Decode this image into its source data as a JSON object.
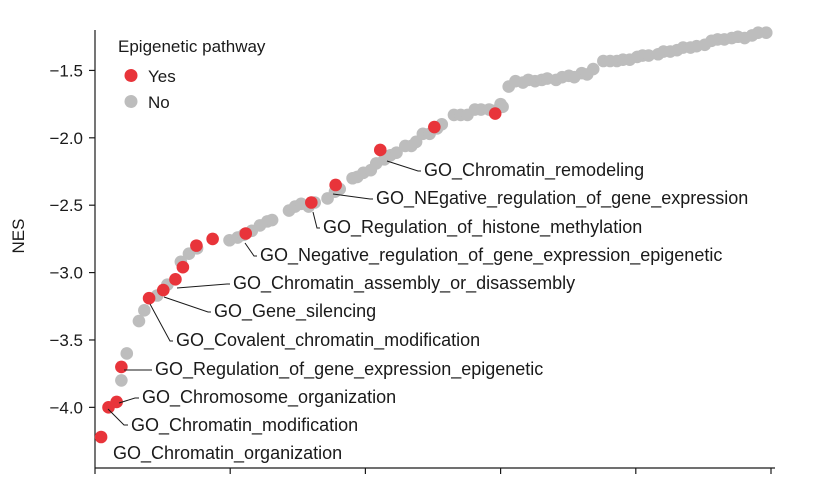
{
  "chart_data": {
    "type": "scatter",
    "title": "",
    "xlabel": "",
    "ylabel": "NES",
    "xlim": [
      0,
      100
    ],
    "ylim": [
      -4.45,
      -1.2
    ],
    "yticks": [
      -1.5,
      -2.0,
      -2.5,
      -3.0,
      -3.5,
      -4.0
    ],
    "ytick_labels": [
      "−1.5",
      "−2.0",
      "−2.5",
      "−3.0",
      "−3.5",
      "−4.0"
    ],
    "xticks": [
      0,
      20,
      40,
      60,
      80,
      100
    ],
    "legend": {
      "title": "Epigenetic pathway",
      "position": "top-left",
      "entries": [
        {
          "label": "Yes",
          "color": "#e8343a"
        },
        {
          "label": "No",
          "color": "#bdbdbd"
        }
      ]
    },
    "series": [
      {
        "name": "No",
        "color": "#bdbdbd",
        "points": [
          [
            3.9,
            -3.8
          ],
          [
            4.7,
            -3.6
          ],
          [
            6.5,
            -3.36
          ],
          [
            7.3,
            -3.28
          ],
          [
            9.2,
            -3.17
          ],
          [
            10.7,
            -3.09
          ],
          [
            12.7,
            -2.92
          ],
          [
            13.9,
            -2.86
          ],
          [
            15.1,
            -2.82
          ],
          [
            19.9,
            -2.76
          ],
          [
            21.1,
            -2.74
          ],
          [
            22.0,
            -2.72
          ],
          [
            23.2,
            -2.69
          ],
          [
            24.4,
            -2.65
          ],
          [
            25.5,
            -2.62
          ],
          [
            26.2,
            -2.61
          ],
          [
            28.7,
            -2.54
          ],
          [
            29.6,
            -2.51
          ],
          [
            30.5,
            -2.49
          ],
          [
            31.6,
            -2.51
          ],
          [
            32.5,
            -2.48
          ],
          [
            34.4,
            -2.45
          ],
          [
            35.5,
            -2.4
          ],
          [
            36.2,
            -2.38
          ],
          [
            38.1,
            -2.3
          ],
          [
            38.8,
            -2.29
          ],
          [
            39.7,
            -2.26
          ],
          [
            40.8,
            -2.24
          ],
          [
            41.6,
            -2.19
          ],
          [
            42.8,
            -2.16
          ],
          [
            43.7,
            -2.13
          ],
          [
            44.6,
            -2.11
          ],
          [
            45.9,
            -2.06
          ],
          [
            46.8,
            -2.06
          ],
          [
            47.5,
            -2.03
          ],
          [
            48.5,
            -1.97
          ],
          [
            49.5,
            -1.97
          ],
          [
            50.6,
            -1.93
          ],
          [
            51.3,
            -1.9
          ],
          [
            53.1,
            -1.83
          ],
          [
            54.1,
            -1.83
          ],
          [
            55.1,
            -1.83
          ],
          [
            56.2,
            -1.79
          ],
          [
            57.1,
            -1.79
          ],
          [
            58.3,
            -1.79
          ],
          [
            59.1,
            -1.8
          ],
          [
            60.0,
            -1.75
          ],
          [
            60.3,
            -1.77
          ],
          [
            61.2,
            -1.62
          ],
          [
            62.2,
            -1.58
          ],
          [
            63.3,
            -1.59
          ],
          [
            64.1,
            -1.57
          ],
          [
            65.1,
            -1.58
          ],
          [
            66.1,
            -1.57
          ],
          [
            66.9,
            -1.56
          ],
          [
            68.2,
            -1.57
          ],
          [
            69.1,
            -1.55
          ],
          [
            70.1,
            -1.54
          ],
          [
            70.9,
            -1.55
          ],
          [
            72.0,
            -1.52
          ],
          [
            72.8,
            -1.53
          ],
          [
            73.7,
            -1.49
          ],
          [
            75.2,
            -1.43
          ],
          [
            76.2,
            -1.43
          ],
          [
            77.2,
            -1.43
          ],
          [
            78.1,
            -1.42
          ],
          [
            79.1,
            -1.42
          ],
          [
            80.2,
            -1.4
          ],
          [
            81.0,
            -1.39
          ],
          [
            81.9,
            -1.39
          ],
          [
            83.3,
            -1.38
          ],
          [
            84.1,
            -1.36
          ],
          [
            85.1,
            -1.36
          ],
          [
            86.1,
            -1.35
          ],
          [
            87.0,
            -1.33
          ],
          [
            88.1,
            -1.33
          ],
          [
            89.0,
            -1.32
          ],
          [
            90.2,
            -1.31
          ],
          [
            91.2,
            -1.28
          ],
          [
            92.1,
            -1.27
          ],
          [
            93.1,
            -1.27
          ],
          [
            94.2,
            -1.26
          ],
          [
            95.1,
            -1.25
          ],
          [
            96.1,
            -1.26
          ],
          [
            97.2,
            -1.24
          ],
          [
            98.1,
            -1.22
          ],
          [
            99.3,
            -1.22
          ]
        ]
      },
      {
        "name": "Yes",
        "color": "#e8343a",
        "points": [
          [
            0.9,
            -4.22
          ],
          [
            2.0,
            -4.0
          ],
          [
            3.2,
            -3.96
          ],
          [
            3.9,
            -3.7
          ],
          [
            8.0,
            -3.19
          ],
          [
            10.1,
            -3.13
          ],
          [
            11.9,
            -3.05
          ],
          [
            13.0,
            -2.96
          ],
          [
            15.0,
            -2.8
          ],
          [
            17.4,
            -2.75
          ],
          [
            22.3,
            -2.71
          ],
          [
            32.0,
            -2.48
          ],
          [
            35.6,
            -2.35
          ],
          [
            42.2,
            -2.09
          ],
          [
            50.2,
            -1.92
          ],
          [
            59.2,
            -1.82
          ]
        ]
      }
    ],
    "annotations": [
      {
        "label": "GO_Chromatin_organization",
        "point": [
          0.9,
          -4.22
        ]
      },
      {
        "label": "GO_Chromatin_modification",
        "point": [
          2.0,
          -4.0
        ]
      },
      {
        "label": "GO_Chromosome_organization",
        "point": [
          3.2,
          -3.96
        ]
      },
      {
        "label": "GO_Regulation_of_gene_expression_epigenetic",
        "point": [
          3.9,
          -3.7
        ]
      },
      {
        "label": "GO_Covalent_chromatin_modification",
        "point": [
          8.0,
          -3.19
        ]
      },
      {
        "label": "GO_Gene_silencing",
        "point": [
          10.1,
          -3.13
        ]
      },
      {
        "label": "GO_Chromatin_assembly_or_disassembly",
        "point": [
          11.9,
          -3.05
        ]
      },
      {
        "label": "GO_Negative_regulation_of_gene_expression_epigenetic",
        "point": [
          22.3,
          -2.71
        ]
      },
      {
        "label": "GO_Regulation_of_histone_methylation",
        "point": [
          32.0,
          -2.48
        ]
      },
      {
        "label": "GO_NEgative_regulation_of_gene_expression",
        "point": [
          35.6,
          -2.35
        ]
      },
      {
        "label": "GO_Chromatin_remodeling",
        "point": [
          42.2,
          -2.09
        ]
      }
    ]
  }
}
